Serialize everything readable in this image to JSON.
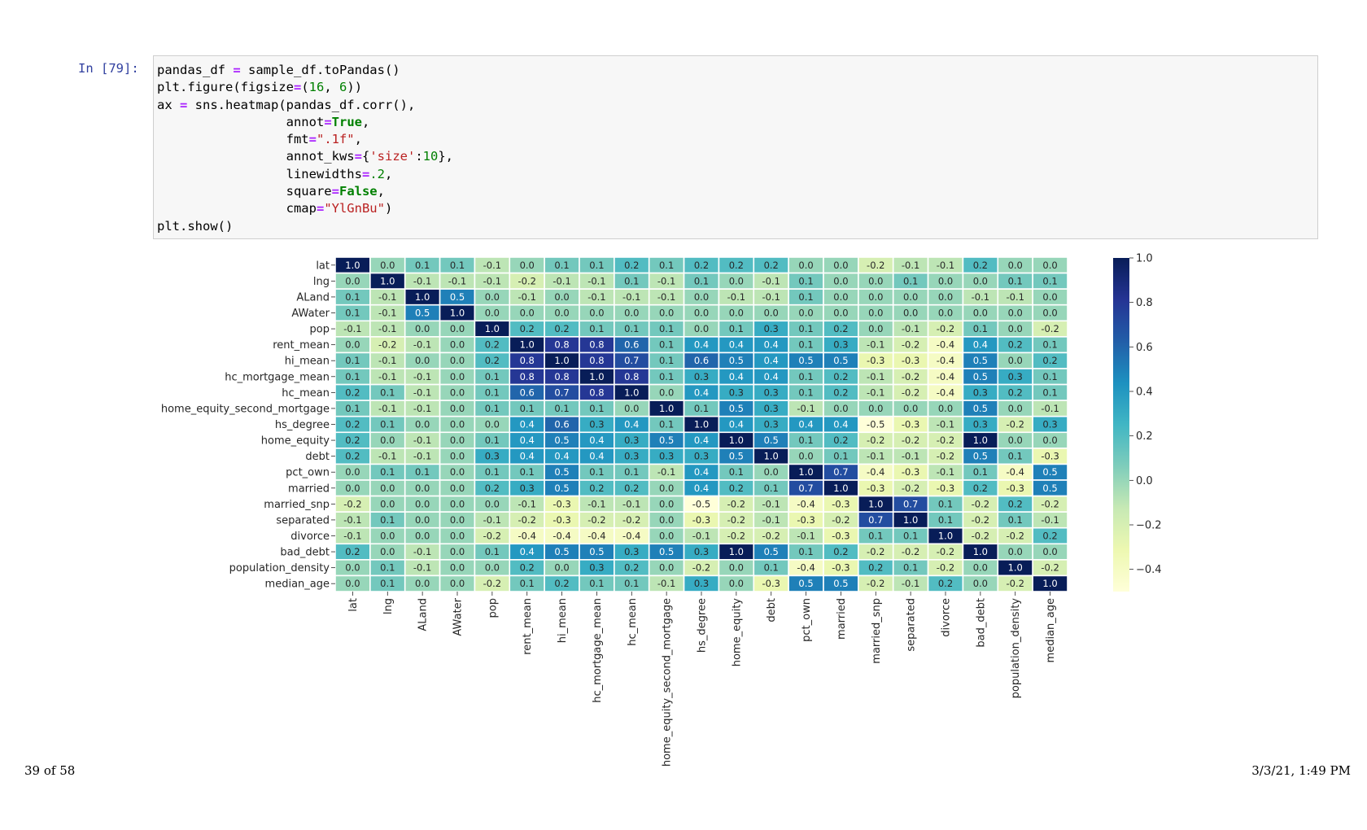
{
  "cell": {
    "prompt": "In [79]:",
    "code_lines": [
      [
        {
          "t": "pandas_df ",
          "c": ""
        },
        {
          "t": "=",
          "c": "op"
        },
        {
          "t": " sample_df.toPandas()",
          "c": ""
        }
      ],
      [
        {
          "t": "plt.figure(figsize",
          "c": ""
        },
        {
          "t": "=",
          "c": "op"
        },
        {
          "t": "(",
          "c": ""
        },
        {
          "t": "16",
          "c": "num"
        },
        {
          "t": ", ",
          "c": ""
        },
        {
          "t": "6",
          "c": "num"
        },
        {
          "t": "))",
          "c": ""
        }
      ],
      [
        {
          "t": "ax ",
          "c": ""
        },
        {
          "t": "=",
          "c": "op"
        },
        {
          "t": " sns.heatmap(pandas_df.corr(),",
          "c": ""
        }
      ],
      [
        {
          "t": "                 annot",
          "c": ""
        },
        {
          "t": "=",
          "c": "op"
        },
        {
          "t": "True",
          "c": "kw"
        },
        {
          "t": ",",
          "c": ""
        }
      ],
      [
        {
          "t": "                 fmt",
          "c": ""
        },
        {
          "t": "=",
          "c": "op"
        },
        {
          "t": "\".1f\"",
          "c": "str"
        },
        {
          "t": ",",
          "c": ""
        }
      ],
      [
        {
          "t": "                 annot_kws",
          "c": ""
        },
        {
          "t": "=",
          "c": "op"
        },
        {
          "t": "{",
          "c": ""
        },
        {
          "t": "'size'",
          "c": "str"
        },
        {
          "t": ":",
          "c": ""
        },
        {
          "t": "10",
          "c": "num"
        },
        {
          "t": "},",
          "c": ""
        }
      ],
      [
        {
          "t": "                 linewidths",
          "c": ""
        },
        {
          "t": "=",
          "c": "op"
        },
        {
          "t": ".2",
          "c": "num"
        },
        {
          "t": ",",
          "c": ""
        }
      ],
      [
        {
          "t": "                 square",
          "c": ""
        },
        {
          "t": "=",
          "c": "op"
        },
        {
          "t": "False",
          "c": "kw"
        },
        {
          "t": ",",
          "c": ""
        }
      ],
      [
        {
          "t": "                 cmap",
          "c": ""
        },
        {
          "t": "=",
          "c": "op"
        },
        {
          "t": "\"YlGnBu\"",
          "c": "str"
        },
        {
          "t": ")",
          "c": ""
        }
      ],
      [
        {
          "t": "plt.show()",
          "c": ""
        }
      ]
    ]
  },
  "colors": {
    "prompt": "#303f9f",
    "cmap": [
      "#ffffd9",
      "#edf8b1",
      "#c7e9b4",
      "#7fcdbb",
      "#41b6c4",
      "#1d91c0",
      "#225ea8",
      "#253494",
      "#081d58"
    ]
  },
  "chart_data": {
    "type": "heatmap",
    "title": "",
    "labels": [
      "lat",
      "lng",
      "ALand",
      "AWater",
      "pop",
      "rent_mean",
      "hi_mean",
      "hc_mortgage_mean",
      "hc_mean",
      "home_equity_second_mortgage",
      "hs_degree",
      "home_equity",
      "debt",
      "pct_own",
      "married",
      "married_snp",
      "separated",
      "divorce",
      "bad_debt",
      "population_density",
      "median_age"
    ],
    "values": [
      [
        1.0,
        0.0,
        0.1,
        0.1,
        -0.1,
        -0.0,
        0.1,
        0.1,
        0.2,
        0.1,
        0.2,
        0.2,
        0.2,
        0.0,
        0.0,
        -0.2,
        -0.1,
        -0.1,
        0.2,
        0.0,
        -0.0
      ],
      [
        0.0,
        1.0,
        -0.1,
        -0.1,
        -0.1,
        -0.2,
        -0.1,
        -0.1,
        0.1,
        -0.1,
        0.1,
        0.0,
        -0.1,
        0.1,
        -0.0,
        -0.0,
        0.1,
        -0.0,
        -0.0,
        0.1,
        0.1
      ],
      [
        0.1,
        -0.1,
        1.0,
        0.5,
        -0.0,
        -0.1,
        -0.0,
        -0.1,
        -0.1,
        -0.1,
        -0.0,
        -0.1,
        -0.1,
        0.1,
        0.0,
        -0.0,
        -0.0,
        0.0,
        -0.1,
        -0.1,
        0.0
      ],
      [
        0.1,
        -0.1,
        0.5,
        1.0,
        0.0,
        -0.0,
        0.0,
        -0.0,
        -0.0,
        -0.0,
        0.0,
        -0.0,
        -0.0,
        0.0,
        -0.0,
        0.0,
        -0.0,
        0.0,
        -0.0,
        -0.0,
        0.0
      ],
      [
        -0.1,
        -0.1,
        -0.0,
        0.0,
        1.0,
        0.2,
        0.2,
        0.1,
        0.1,
        0.1,
        0.0,
        0.1,
        0.3,
        0.1,
        0.2,
        -0.0,
        -0.1,
        -0.2,
        0.1,
        0.0,
        -0.2
      ],
      [
        -0.0,
        -0.2,
        -0.1,
        -0.0,
        0.2,
        1.0,
        0.8,
        0.8,
        0.6,
        0.1,
        0.4,
        0.4,
        0.4,
        0.1,
        0.3,
        -0.1,
        -0.2,
        -0.4,
        0.4,
        0.2,
        0.1
      ],
      [
        0.1,
        -0.1,
        -0.0,
        0.0,
        0.2,
        0.8,
        1.0,
        0.8,
        0.7,
        0.1,
        0.6,
        0.5,
        0.4,
        0.5,
        0.5,
        -0.3,
        -0.3,
        -0.4,
        0.5,
        -0.0,
        0.2
      ],
      [
        0.1,
        -0.1,
        -0.1,
        -0.0,
        0.1,
        0.8,
        0.8,
        1.0,
        0.8,
        0.1,
        0.3,
        0.4,
        0.4,
        0.1,
        0.2,
        -0.1,
        -0.2,
        -0.4,
        0.5,
        0.3,
        0.1
      ],
      [
        0.2,
        0.1,
        -0.1,
        -0.0,
        0.1,
        0.6,
        0.7,
        0.8,
        1.0,
        0.0,
        0.4,
        0.3,
        0.3,
        0.1,
        0.2,
        -0.1,
        -0.2,
        -0.4,
        0.3,
        0.2,
        0.1
      ],
      [
        0.1,
        -0.1,
        -0.1,
        -0.0,
        0.1,
        0.1,
        0.1,
        0.1,
        0.0,
        1.0,
        0.1,
        0.5,
        0.3,
        -0.1,
        -0.0,
        -0.0,
        -0.0,
        -0.0,
        0.5,
        -0.0,
        -0.1
      ],
      [
        0.2,
        0.1,
        -0.0,
        0.0,
        0.0,
        0.4,
        0.6,
        0.3,
        0.4,
        0.1,
        1.0,
        0.4,
        0.3,
        0.4,
        0.4,
        -0.5,
        -0.3,
        -0.1,
        0.3,
        -0.2,
        0.3
      ],
      [
        0.2,
        0.0,
        -0.1,
        -0.0,
        0.1,
        0.4,
        0.5,
        0.4,
        0.3,
        0.5,
        0.4,
        1.0,
        0.5,
        0.1,
        0.2,
        -0.2,
        -0.2,
        -0.2,
        1.0,
        -0.0,
        0.0
      ],
      [
        0.2,
        -0.1,
        -0.1,
        -0.0,
        0.3,
        0.4,
        0.4,
        0.4,
        0.3,
        0.3,
        0.3,
        0.5,
        1.0,
        -0.0,
        0.1,
        -0.1,
        -0.1,
        -0.2,
        0.5,
        0.1,
        -0.3
      ],
      [
        0.0,
        0.1,
        0.1,
        0.0,
        0.1,
        0.1,
        0.5,
        0.1,
        0.1,
        -0.1,
        0.4,
        0.1,
        -0.0,
        1.0,
        0.7,
        -0.4,
        -0.3,
        -0.1,
        0.1,
        -0.4,
        0.5
      ],
      [
        0.0,
        -0.0,
        0.0,
        -0.0,
        0.2,
        0.3,
        0.5,
        0.2,
        0.2,
        -0.0,
        0.4,
        0.2,
        0.1,
        0.7,
        1.0,
        -0.3,
        -0.2,
        -0.3,
        0.2,
        -0.3,
        0.5
      ],
      [
        -0.2,
        -0.0,
        -0.0,
        0.0,
        -0.0,
        -0.1,
        -0.3,
        -0.1,
        -0.1,
        -0.0,
        -0.5,
        -0.2,
        -0.1,
        -0.4,
        -0.3,
        1.0,
        0.7,
        0.1,
        -0.2,
        0.2,
        -0.2
      ],
      [
        -0.1,
        0.1,
        -0.0,
        -0.0,
        -0.1,
        -0.2,
        -0.3,
        -0.2,
        -0.2,
        -0.0,
        -0.3,
        -0.2,
        -0.1,
        -0.3,
        -0.2,
        0.7,
        1.0,
        0.1,
        -0.2,
        0.1,
        -0.1
      ],
      [
        -0.1,
        -0.0,
        0.0,
        0.0,
        -0.2,
        -0.4,
        -0.4,
        -0.4,
        -0.4,
        -0.0,
        -0.1,
        -0.2,
        -0.2,
        -0.1,
        -0.3,
        0.1,
        0.1,
        1.0,
        -0.2,
        -0.2,
        0.2
      ],
      [
        0.2,
        -0.0,
        -0.1,
        -0.0,
        0.1,
        0.4,
        0.5,
        0.5,
        0.3,
        0.5,
        0.3,
        1.0,
        0.5,
        0.1,
        0.2,
        -0.2,
        -0.2,
        -0.2,
        1.0,
        -0.0,
        0.0
      ],
      [
        0.0,
        0.1,
        -0.1,
        -0.0,
        0.0,
        0.2,
        -0.0,
        0.3,
        0.2,
        -0.0,
        -0.2,
        -0.0,
        0.1,
        -0.4,
        -0.3,
        0.2,
        0.1,
        -0.2,
        -0.0,
        1.0,
        -0.2
      ],
      [
        -0.0,
        0.1,
        0.0,
        0.0,
        -0.2,
        0.1,
        0.2,
        0.1,
        0.1,
        -0.1,
        0.3,
        0.0,
        -0.3,
        0.5,
        0.5,
        -0.2,
        -0.1,
        0.2,
        0.0,
        -0.2,
        1.0
      ]
    ],
    "vmin": -0.5,
    "vmax": 1.0,
    "colorbar_ticks": [
      "1.0",
      "0.8",
      "0.6",
      "0.4",
      "0.2",
      "0.0",
      "−0.2",
      "−0.4"
    ],
    "colorbar_tick_values": [
      1.0,
      0.8,
      0.6,
      0.4,
      0.2,
      0.0,
      -0.2,
      -0.4
    ],
    "cmap": "YlGnBu"
  },
  "footer": {
    "page": "39 of 58",
    "timestamp": "3/3/21, 1:49 PM"
  }
}
